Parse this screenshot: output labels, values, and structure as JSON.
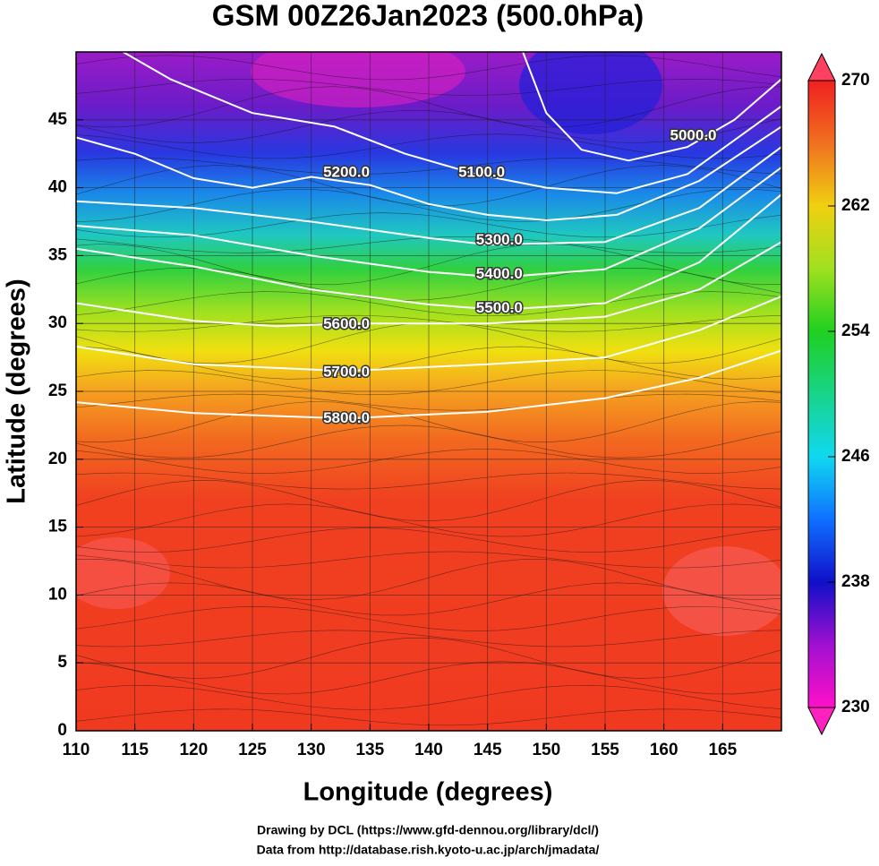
{
  "chart_data": {
    "type": "map",
    "title": "GSM 00Z26Jan2023 (500.0hPa)",
    "xlabel": "Longitude (degrees)",
    "ylabel": "Latitude  (degrees)",
    "xlim": [
      110,
      170
    ],
    "ylim": [
      0,
      50
    ],
    "xticks": [
      110,
      115,
      120,
      125,
      130,
      135,
      140,
      145,
      150,
      155,
      160,
      165
    ],
    "yticks": [
      0,
      5,
      10,
      15,
      20,
      25,
      30,
      35,
      40,
      45
    ],
    "grid": true,
    "colorbar": {
      "lim": [
        230,
        270
      ],
      "ticks": [
        230,
        238,
        246,
        254,
        262,
        270
      ]
    },
    "contours": [
      {
        "value": 5000,
        "label": "5000.0"
      },
      {
        "value": 5100,
        "label": "5100.0"
      },
      {
        "value": 5200,
        "label": "5200.0"
      },
      {
        "value": 5300,
        "label": "5300.0"
      },
      {
        "value": 5400,
        "label": "5400.0"
      },
      {
        "value": 5500,
        "label": "5500.0"
      },
      {
        "value": 5600,
        "label": "5600.0"
      },
      {
        "value": 5700,
        "label": "5700.0"
      },
      {
        "value": 5800,
        "label": "5800.0"
      }
    ],
    "credits": [
      "Drawing by DCL (https://www.gfd-dennou.org/library/dcl/)",
      "Data from http://database.rish.kyoto-u.ac.jp/arch/jmadata/"
    ]
  }
}
